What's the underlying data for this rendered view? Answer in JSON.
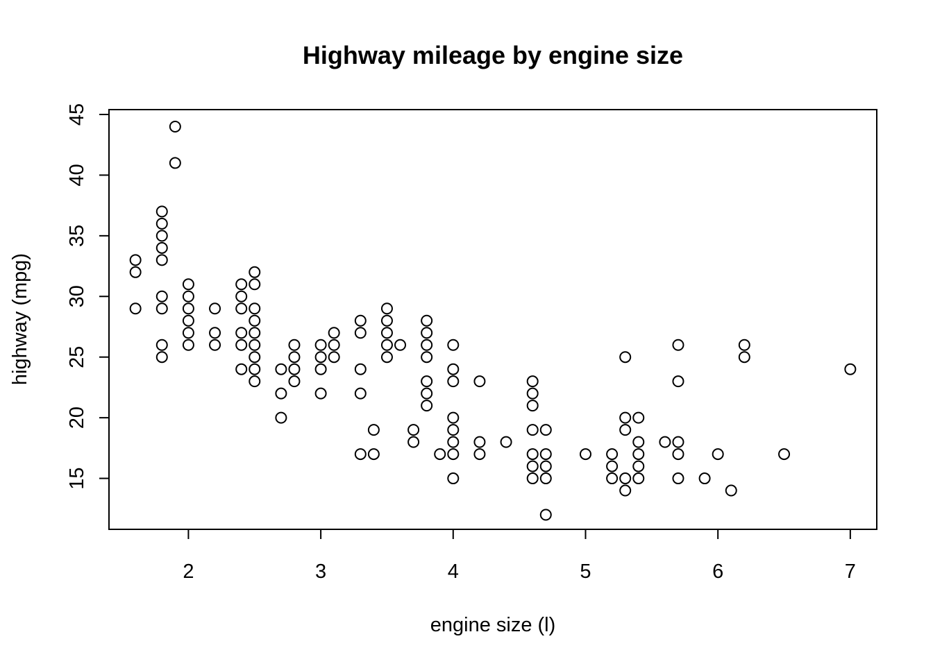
{
  "chart_data": {
    "type": "scatter",
    "title": "Highway mileage by engine size",
    "xlabel": "engine size (l)",
    "ylabel": "highway (mpg)",
    "xlim": [
      1.4,
      7.2
    ],
    "ylim": [
      10.8,
      45.4
    ],
    "x_ticks": [
      2,
      3,
      4,
      5,
      6,
      7
    ],
    "y_ticks": [
      15,
      20,
      25,
      30,
      35,
      40,
      45
    ],
    "grid": false,
    "legend": "none",
    "colors": {
      "marker": "#000000",
      "background": "#ffffff"
    },
    "points": [
      [
        1.6,
        33
      ],
      [
        1.6,
        32
      ],
      [
        1.6,
        29
      ],
      [
        1.8,
        37
      ],
      [
        1.8,
        36
      ],
      [
        1.8,
        35
      ],
      [
        1.8,
        34
      ],
      [
        1.8,
        33
      ],
      [
        1.8,
        30
      ],
      [
        1.8,
        29
      ],
      [
        1.8,
        26
      ],
      [
        1.8,
        25
      ],
      [
        1.9,
        44
      ],
      [
        1.9,
        41
      ],
      [
        2.0,
        31
      ],
      [
        2.0,
        30
      ],
      [
        2.0,
        29
      ],
      [
        2.0,
        28
      ],
      [
        2.0,
        27
      ],
      [
        2.0,
        26
      ],
      [
        2.2,
        29
      ],
      [
        2.2,
        27
      ],
      [
        2.2,
        26
      ],
      [
        2.4,
        31
      ],
      [
        2.4,
        30
      ],
      [
        2.4,
        29
      ],
      [
        2.4,
        27
      ],
      [
        2.4,
        26
      ],
      [
        2.4,
        24
      ],
      [
        2.5,
        32
      ],
      [
        2.5,
        31
      ],
      [
        2.5,
        29
      ],
      [
        2.5,
        28
      ],
      [
        2.5,
        27
      ],
      [
        2.5,
        26
      ],
      [
        2.5,
        25
      ],
      [
        2.5,
        24
      ],
      [
        2.5,
        23
      ],
      [
        2.7,
        24
      ],
      [
        2.7,
        22
      ],
      [
        2.7,
        20
      ],
      [
        2.8,
        26
      ],
      [
        2.8,
        25
      ],
      [
        2.8,
        24
      ],
      [
        2.8,
        23
      ],
      [
        3.0,
        26
      ],
      [
        3.0,
        25
      ],
      [
        3.0,
        24
      ],
      [
        3.0,
        22
      ],
      [
        3.1,
        27
      ],
      [
        3.1,
        26
      ],
      [
        3.1,
        25
      ],
      [
        3.3,
        28
      ],
      [
        3.3,
        27
      ],
      [
        3.3,
        24
      ],
      [
        3.3,
        22
      ],
      [
        3.3,
        17
      ],
      [
        3.4,
        19
      ],
      [
        3.4,
        17
      ],
      [
        3.5,
        29
      ],
      [
        3.5,
        28
      ],
      [
        3.5,
        27
      ],
      [
        3.5,
        26
      ],
      [
        3.5,
        25
      ],
      [
        3.6,
        26
      ],
      [
        3.7,
        19
      ],
      [
        3.7,
        18
      ],
      [
        3.8,
        28
      ],
      [
        3.8,
        27
      ],
      [
        3.8,
        26
      ],
      [
        3.8,
        25
      ],
      [
        3.8,
        23
      ],
      [
        3.8,
        22
      ],
      [
        3.8,
        21
      ],
      [
        3.9,
        17
      ],
      [
        4.0,
        26
      ],
      [
        4.0,
        24
      ],
      [
        4.0,
        23
      ],
      [
        4.0,
        20
      ],
      [
        4.0,
        19
      ],
      [
        4.0,
        18
      ],
      [
        4.0,
        17
      ],
      [
        4.0,
        15
      ],
      [
        4.2,
        23
      ],
      [
        4.2,
        18
      ],
      [
        4.2,
        17
      ],
      [
        4.4,
        18
      ],
      [
        4.6,
        23
      ],
      [
        4.6,
        22
      ],
      [
        4.6,
        21
      ],
      [
        4.6,
        19
      ],
      [
        4.6,
        17
      ],
      [
        4.6,
        16
      ],
      [
        4.6,
        15
      ],
      [
        4.7,
        19
      ],
      [
        4.7,
        17
      ],
      [
        4.7,
        16
      ],
      [
        4.7,
        15
      ],
      [
        4.7,
        12
      ],
      [
        5.0,
        17
      ],
      [
        5.2,
        17
      ],
      [
        5.2,
        16
      ],
      [
        5.2,
        15
      ],
      [
        5.3,
        25
      ],
      [
        5.3,
        20
      ],
      [
        5.3,
        19
      ],
      [
        5.3,
        15
      ],
      [
        5.3,
        14
      ],
      [
        5.4,
        20
      ],
      [
        5.4,
        18
      ],
      [
        5.4,
        17
      ],
      [
        5.4,
        16
      ],
      [
        5.4,
        15
      ],
      [
        5.6,
        18
      ],
      [
        5.7,
        26
      ],
      [
        5.7,
        23
      ],
      [
        5.7,
        18
      ],
      [
        5.7,
        17
      ],
      [
        5.7,
        15
      ],
      [
        5.9,
        15
      ],
      [
        6.0,
        17
      ],
      [
        6.1,
        14
      ],
      [
        6.2,
        26
      ],
      [
        6.2,
        25
      ],
      [
        6.5,
        17
      ],
      [
        7.0,
        24
      ]
    ]
  }
}
